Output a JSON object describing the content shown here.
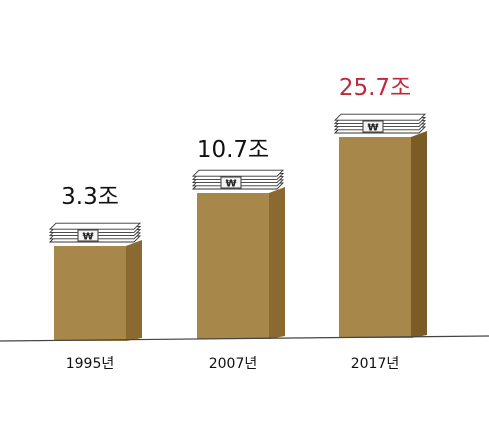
{
  "chart_data": {
    "type": "bar",
    "title": "",
    "xlabel": "",
    "ylabel": "",
    "categories": [
      "1995년",
      "2007년",
      "2017년"
    ],
    "values": [
      3.3,
      10.7,
      25.7
    ],
    "value_labels": [
      "3.3조",
      "10.7조",
      "25.7조"
    ],
    "ylim": [
      0,
      25.7
    ],
    "grid": false,
    "legend": "none",
    "highlight_index": 2,
    "bar_icon": "money-stack-icon",
    "currency_symbol": "₩",
    "colors": {
      "bar_front": "#a8874a",
      "bar_side": "#8a6a30",
      "bar_side_dark": "#7b5c26",
      "label": "#111111",
      "highlight_label": "#c0283c",
      "axis": "#444444",
      "money_band": "#555555"
    }
  }
}
